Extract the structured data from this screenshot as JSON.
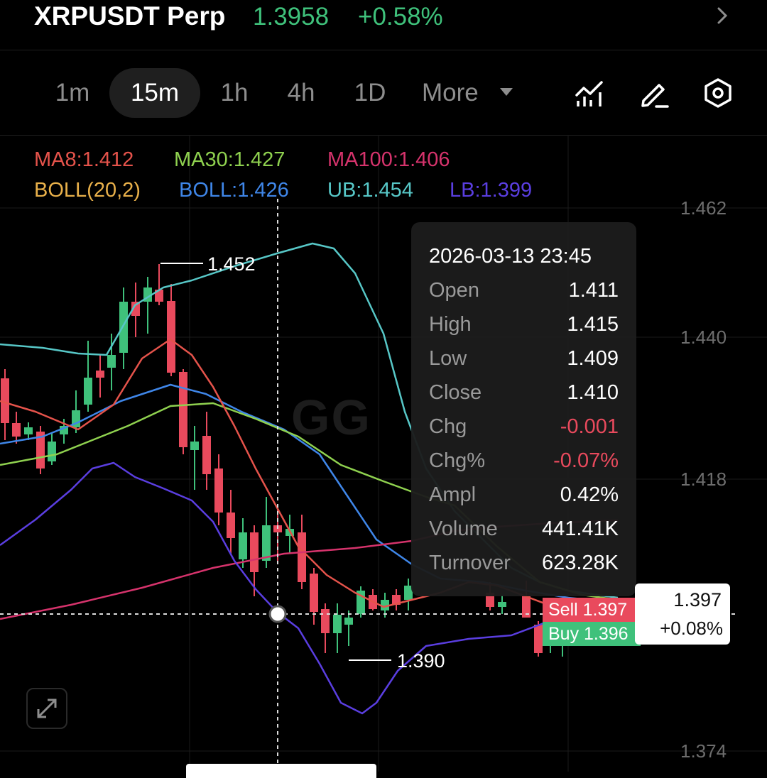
{
  "header": {
    "symbol": "XRPUSDT Perp",
    "price": "1.3958",
    "change": "+0.58%",
    "chevron_icon": "chevron-right-icon"
  },
  "toolbar": {
    "timeframes": [
      "1m",
      "15m",
      "1h",
      "4h",
      "1D"
    ],
    "active_timeframe": "15m",
    "more_label": "More",
    "icons": [
      "indicators-icon",
      "draw-pencil-icon",
      "settings-hexagon-icon"
    ]
  },
  "indicators": {
    "ma8": "MA8:1.412",
    "ma30": "MA30:1.427",
    "ma100": "MA100:1.406",
    "boll_params": "BOLL(20,2)",
    "boll": "BOLL:1.426",
    "ub": "UB:1.454",
    "lb": "LB:1.399"
  },
  "colors": {
    "up": "#3fc17b",
    "down": "#e94a5d",
    "ma8": "#e5534b",
    "ma30": "#8fd14f",
    "ma100": "#d6336c",
    "boll_params": "#e8b04a",
    "boll": "#3f86e8",
    "ub": "#57c7c7",
    "lb": "#5a3ee0"
  },
  "price_axis": {
    "labels": [
      "1.462",
      "1.440",
      "1.418",
      "1.374"
    ]
  },
  "watermark": "GG",
  "annotations": {
    "high_label": "1.452",
    "low_label": "1.390"
  },
  "tooltip": {
    "datetime": "2026-03-13 23:45",
    "rows": [
      {
        "key": "Open",
        "value": "1.411"
      },
      {
        "key": "High",
        "value": "1.415"
      },
      {
        "key": "Low",
        "value": "1.409"
      },
      {
        "key": "Close",
        "value": "1.410"
      },
      {
        "key": "Chg",
        "value": "-0.001"
      },
      {
        "key": "Chg%",
        "value": "-0.07%"
      },
      {
        "key": "Ampl",
        "value": "0.42%"
      },
      {
        "key": "Volume",
        "value": "441.41K"
      },
      {
        "key": "Turnover",
        "value": "623.28K"
      }
    ]
  },
  "order_tags": {
    "sell": "Sell 1.397",
    "buy": "Buy 1.396"
  },
  "last_price": {
    "price": "1.397",
    "change": "+0.08%"
  },
  "expand_icon": "expand-arrows-icon"
}
